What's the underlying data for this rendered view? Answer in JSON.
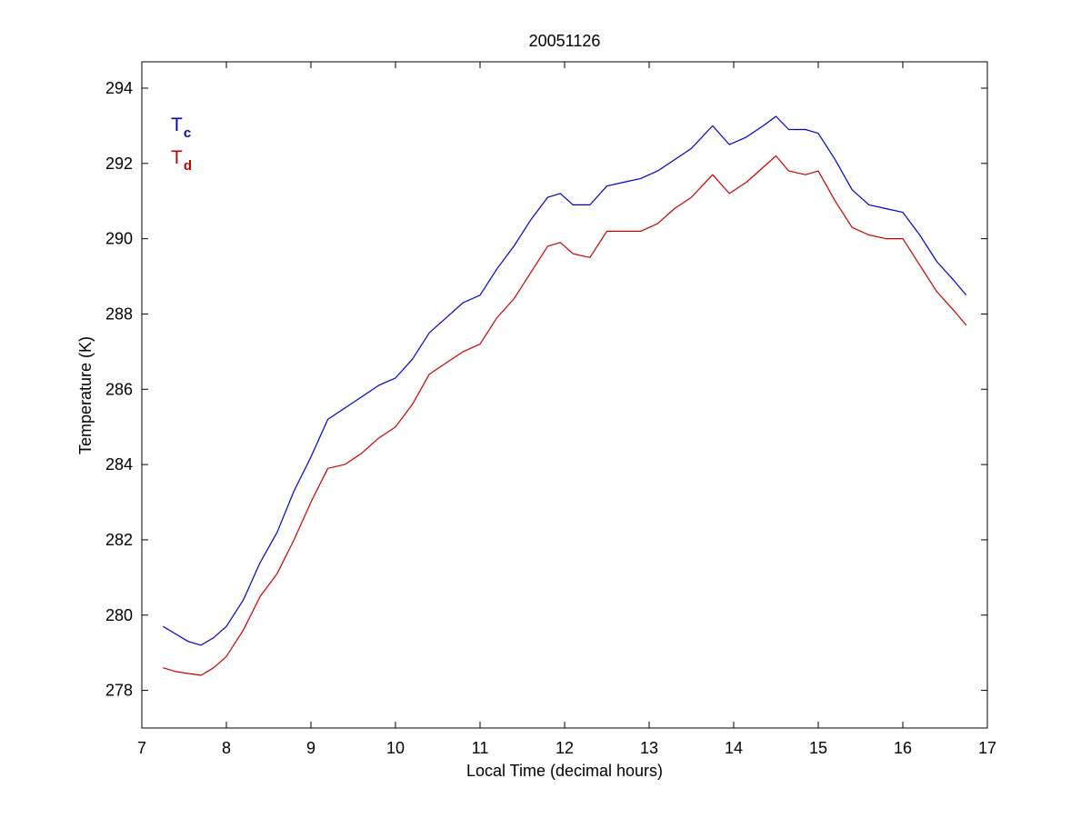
{
  "chart_data": {
    "type": "line",
    "title": "20051126",
    "xlabel": "Local Time (decimal hours)",
    "ylabel": "Temperature (K)",
    "xlim": [
      7,
      17
    ],
    "ylim": [
      277,
      294.7
    ],
    "xticks": [
      7,
      8,
      9,
      10,
      11,
      12,
      13,
      14,
      15,
      16,
      17
    ],
    "yticks": [
      278,
      280,
      282,
      284,
      286,
      288,
      290,
      292,
      294
    ],
    "grid": false,
    "legend_placement": "top-left",
    "series": [
      {
        "name": "T",
        "subscript": "c",
        "color": "#0000cc",
        "x": [
          7.25,
          7.4,
          7.55,
          7.7,
          7.85,
          8.0,
          8.2,
          8.4,
          8.6,
          8.8,
          9.0,
          9.2,
          9.4,
          9.6,
          9.8,
          10.0,
          10.2,
          10.4,
          10.6,
          10.8,
          11.0,
          11.2,
          11.4,
          11.6,
          11.8,
          11.95,
          12.1,
          12.3,
          12.5,
          12.7,
          12.9,
          13.1,
          13.3,
          13.5,
          13.75,
          13.95,
          14.15,
          14.35,
          14.5,
          14.65,
          14.85,
          15.0,
          15.2,
          15.4,
          15.6,
          15.8,
          16.0,
          16.2,
          16.4,
          16.6,
          16.75
        ],
        "values": [
          279.7,
          279.5,
          279.3,
          279.2,
          279.4,
          279.7,
          280.4,
          281.4,
          282.2,
          283.3,
          284.2,
          285.2,
          285.5,
          285.8,
          286.1,
          286.3,
          286.8,
          287.5,
          287.9,
          288.3,
          288.5,
          289.2,
          289.8,
          290.5,
          291.1,
          291.2,
          290.9,
          290.9,
          291.4,
          291.5,
          291.6,
          291.8,
          292.1,
          292.4,
          293.0,
          292.5,
          292.7,
          293.0,
          293.25,
          292.9,
          292.9,
          292.8,
          292.1,
          291.3,
          290.9,
          290.8,
          290.7,
          290.1,
          289.4,
          288.9,
          288.5
        ]
      },
      {
        "name": "T",
        "subscript": "d",
        "color": "#cc0000",
        "x": [
          7.25,
          7.4,
          7.55,
          7.7,
          7.85,
          8.0,
          8.2,
          8.4,
          8.6,
          8.8,
          9.0,
          9.2,
          9.4,
          9.6,
          9.8,
          10.0,
          10.2,
          10.4,
          10.6,
          10.8,
          11.0,
          11.2,
          11.4,
          11.6,
          11.8,
          11.95,
          12.1,
          12.3,
          12.5,
          12.7,
          12.9,
          13.1,
          13.3,
          13.5,
          13.75,
          13.95,
          14.15,
          14.35,
          14.5,
          14.65,
          14.85,
          15.0,
          15.2,
          15.4,
          15.6,
          15.8,
          16.0,
          16.2,
          16.4,
          16.6,
          16.75
        ],
        "values": [
          278.6,
          278.5,
          278.45,
          278.4,
          278.6,
          278.9,
          279.6,
          280.5,
          281.1,
          282.0,
          283.0,
          283.9,
          284.0,
          284.3,
          284.7,
          285.0,
          285.6,
          286.4,
          286.7,
          287.0,
          287.2,
          287.9,
          288.4,
          289.1,
          289.8,
          289.9,
          289.6,
          289.5,
          290.2,
          290.2,
          290.2,
          290.4,
          290.8,
          291.1,
          291.7,
          291.2,
          291.5,
          291.9,
          292.2,
          291.8,
          291.7,
          291.8,
          291.0,
          290.3,
          290.1,
          290.0,
          290.0,
          289.3,
          288.6,
          288.1,
          287.7
        ]
      }
    ]
  }
}
